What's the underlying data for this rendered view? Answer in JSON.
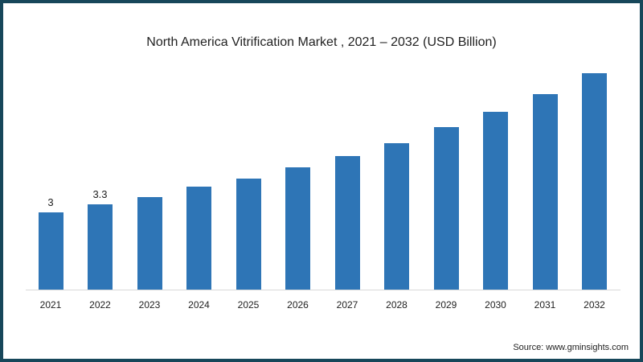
{
  "chart_data": {
    "type": "bar",
    "title": "North America Vitrification Market , 2021 – 2032 (USD Billion)",
    "xlabel": "",
    "ylabel": "USD Billion",
    "categories": [
      "2021",
      "2022",
      "2023",
      "2024",
      "2025",
      "2026",
      "2027",
      "2028",
      "2029",
      "2030",
      "2031",
      "2032"
    ],
    "values": [
      3.0,
      3.3,
      3.6,
      4.0,
      4.3,
      4.75,
      5.2,
      5.7,
      6.3,
      6.9,
      7.6,
      8.4
    ],
    "data_labels": {
      "2021": "3",
      "2022": "3.3"
    },
    "ylim": [
      0,
      9
    ],
    "grid": false,
    "legend": null,
    "bar_color": "#2e75b6"
  },
  "source": "Source: www.gminsights.com",
  "border_color": "#17475a"
}
